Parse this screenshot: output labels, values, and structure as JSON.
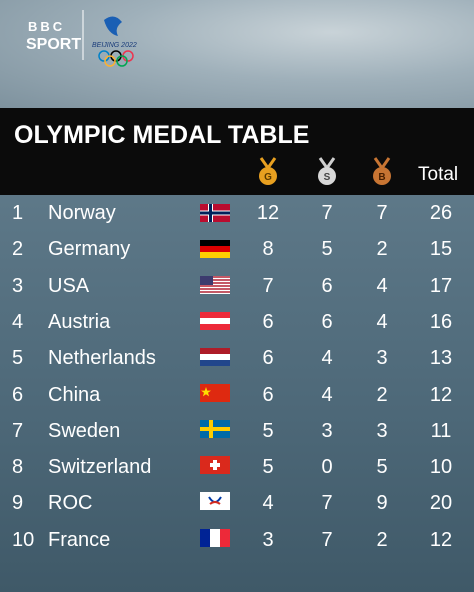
{
  "brand": {
    "bbc": "BBC",
    "sport": "SPORT",
    "games": "BEIJING 2022"
  },
  "table": {
    "title": "OLYMPIC MEDAL TABLE",
    "columns": [
      "G",
      "S",
      "B",
      "Total"
    ],
    "rows": [
      [
        1,
        "Norway",
        12,
        7,
        7,
        26
      ],
      [
        2,
        "Germany",
        8,
        5,
        2,
        15
      ],
      [
        3,
        "USA",
        7,
        6,
        4,
        17
      ],
      [
        4,
        "Austria",
        6,
        6,
        4,
        16
      ],
      [
        5,
        "Netherlands",
        6,
        4,
        3,
        13
      ],
      [
        6,
        "China",
        6,
        4,
        2,
        12
      ],
      [
        7,
        "Sweden",
        5,
        3,
        3,
        11
      ],
      [
        8,
        "Switzerland",
        5,
        0,
        5,
        10
      ],
      [
        9,
        "ROC",
        4,
        7,
        9,
        20
      ],
      [
        10,
        "France",
        3,
        7,
        2,
        12
      ]
    ]
  }
}
